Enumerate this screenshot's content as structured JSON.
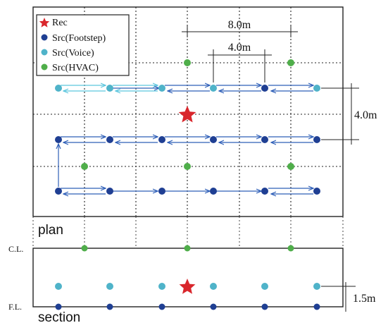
{
  "legend": {
    "items": [
      {
        "label": "Rec",
        "color": "#d9262c",
        "shape": "star"
      },
      {
        "label": "Src(Footstep)",
        "color": "#1f3f93",
        "shape": "dot"
      },
      {
        "label": "Src(Voice)",
        "color": "#4fb3c9",
        "shape": "dot"
      },
      {
        "label": "Src(HVAC)",
        "color": "#4fae4a",
        "shape": "dot"
      }
    ]
  },
  "views": {
    "plan_label": "plan",
    "section_label": "section"
  },
  "dimensions": {
    "grid_8m": "8.0m",
    "grid_4m": "4.0m",
    "depth_4m": "4.0m",
    "height_1_5m": "1.5m"
  },
  "levels": {
    "ceiling": "C.L.",
    "floor": "F.L."
  },
  "colors": {
    "rec": "#d9262c",
    "footstep": "#1f3f93",
    "voice": "#4fb3c9",
    "hvac": "#4fae4a",
    "voice_arrow": "#5cc6de",
    "footstep_arrow": "#2f5fb8"
  }
}
